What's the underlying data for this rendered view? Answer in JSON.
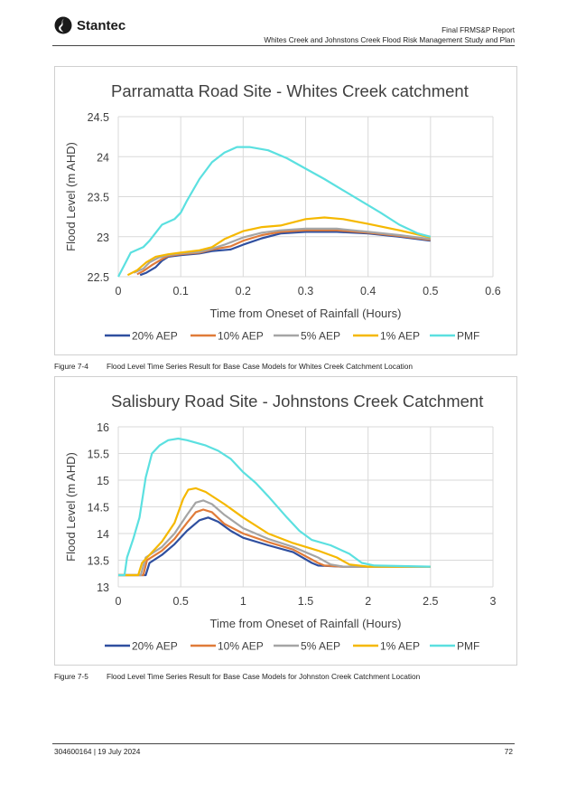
{
  "header": {
    "logo_text": "Stantec",
    "report_title": "Final FRMS&P Report",
    "study_title": "Whites Creek and Johnstons Creek Flood Risk Management Study and Plan"
  },
  "colors": {
    "aep20": "#2F4F9F",
    "aep10": "#E07B39",
    "aep5": "#A5A5A5",
    "aep1": "#F5B800",
    "pmf": "#5BE0E0"
  },
  "figures": [
    {
      "number": "Figure 7-4",
      "caption": "Flood Level Time Series Result for Base Case Models for Whites Creek Catchment Location"
    },
    {
      "number": "Figure 7-5",
      "caption": "Flood Level Time Series Result for Base Case Models for Johnston Creek Catchment Location"
    }
  ],
  "footer": {
    "doc_ref": "304600164 | 19 July 2024",
    "page": "72"
  },
  "chart_data": [
    {
      "type": "line",
      "title": "Parramatta Road Site - Whites Creek catchment",
      "xlabel": "Time from Oneset of Rainfall (Hours)",
      "ylabel": "Flood Level (m AHD)",
      "xlim": [
        0,
        0.6
      ],
      "ylim": [
        22.5,
        24.5
      ],
      "xticks": [
        "0",
        "0.1",
        "0.2",
        "0.3",
        "0.4",
        "0.5",
        "0.6"
      ],
      "yticks": [
        "22.5",
        "23",
        "23.5",
        "24",
        "24.5"
      ],
      "grid": true,
      "legend_position": "bottom",
      "series": [
        {
          "name": "20% AEP",
          "color_key": "aep20",
          "points": [
            [
              0.035,
              22.52
            ],
            [
              0.045,
              22.55
            ],
            [
              0.06,
              22.62
            ],
            [
              0.07,
              22.7
            ],
            [
              0.08,
              22.75
            ],
            [
              0.1,
              22.77
            ],
            [
              0.13,
              22.79
            ],
            [
              0.15,
              22.82
            ],
            [
              0.18,
              22.84
            ],
            [
              0.2,
              22.9
            ],
            [
              0.23,
              22.98
            ],
            [
              0.26,
              23.04
            ],
            [
              0.3,
              23.06
            ],
            [
              0.35,
              23.06
            ],
            [
              0.4,
              23.04
            ],
            [
              0.45,
              23.0
            ],
            [
              0.5,
              22.95
            ]
          ]
        },
        {
          "name": "10% AEP",
          "color_key": "aep10",
          "points": [
            [
              0.03,
              22.53
            ],
            [
              0.04,
              22.57
            ],
            [
              0.055,
              22.65
            ],
            [
              0.07,
              22.72
            ],
            [
              0.08,
              22.76
            ],
            [
              0.1,
              22.78
            ],
            [
              0.13,
              22.8
            ],
            [
              0.15,
              22.84
            ],
            [
              0.18,
              22.88
            ],
            [
              0.2,
              22.95
            ],
            [
              0.23,
              23.02
            ],
            [
              0.26,
              23.06
            ],
            [
              0.3,
              23.08
            ],
            [
              0.35,
              23.08
            ],
            [
              0.4,
              23.05
            ],
            [
              0.45,
              23.01
            ],
            [
              0.5,
              22.96
            ]
          ]
        },
        {
          "name": "5% AEP",
          "color_key": "aep5",
          "points": [
            [
              0.025,
              22.55
            ],
            [
              0.04,
              22.6
            ],
            [
              0.05,
              22.68
            ],
            [
              0.065,
              22.74
            ],
            [
              0.08,
              22.77
            ],
            [
              0.1,
              22.79
            ],
            [
              0.13,
              22.81
            ],
            [
              0.15,
              22.85
            ],
            [
              0.17,
              22.9
            ],
            [
              0.2,
              22.99
            ],
            [
              0.23,
              23.05
            ],
            [
              0.26,
              23.08
            ],
            [
              0.3,
              23.1
            ],
            [
              0.35,
              23.1
            ],
            [
              0.4,
              23.06
            ],
            [
              0.45,
              23.02
            ],
            [
              0.5,
              22.97
            ]
          ]
        },
        {
          "name": "1% AEP",
          "color_key": "aep1",
          "points": [
            [
              0.015,
              22.52
            ],
            [
              0.03,
              22.58
            ],
            [
              0.045,
              22.68
            ],
            [
              0.06,
              22.75
            ],
            [
              0.08,
              22.78
            ],
            [
              0.1,
              22.8
            ],
            [
              0.13,
              22.83
            ],
            [
              0.15,
              22.87
            ],
            [
              0.17,
              22.97
            ],
            [
              0.2,
              23.07
            ],
            [
              0.23,
              23.12
            ],
            [
              0.26,
              23.14
            ],
            [
              0.3,
              23.22
            ],
            [
              0.33,
              23.24
            ],
            [
              0.36,
              23.22
            ],
            [
              0.4,
              23.16
            ],
            [
              0.45,
              23.08
            ],
            [
              0.5,
              22.99
            ]
          ]
        },
        {
          "name": "PMF",
          "color_key": "pmf",
          "points": [
            [
              0.0,
              22.5
            ],
            [
              0.01,
              22.65
            ],
            [
              0.02,
              22.8
            ],
            [
              0.04,
              22.87
            ],
            [
              0.05,
              22.95
            ],
            [
              0.07,
              23.15
            ],
            [
              0.09,
              23.22
            ],
            [
              0.1,
              23.3
            ],
            [
              0.11,
              23.45
            ],
            [
              0.13,
              23.72
            ],
            [
              0.15,
              23.93
            ],
            [
              0.17,
              24.05
            ],
            [
              0.19,
              24.12
            ],
            [
              0.21,
              24.12
            ],
            [
              0.24,
              24.08
            ],
            [
              0.27,
              23.98
            ],
            [
              0.3,
              23.85
            ],
            [
              0.33,
              23.72
            ],
            [
              0.36,
              23.58
            ],
            [
              0.39,
              23.44
            ],
            [
              0.42,
              23.3
            ],
            [
              0.45,
              23.15
            ],
            [
              0.48,
              23.04
            ],
            [
              0.5,
              23.0
            ]
          ]
        }
      ]
    },
    {
      "type": "line",
      "title": "Salisbury Road Site - Johnstons Creek Catchment",
      "xlabel": "Time from Oneset of Rainfall (Hours)",
      "ylabel": "Flood Level (m AHD)",
      "xlim": [
        0,
        3
      ],
      "ylim": [
        13,
        16
      ],
      "xticks": [
        "0",
        "0.5",
        "1",
        "1.5",
        "2",
        "2.5",
        "3"
      ],
      "yticks": [
        "13",
        "13.5",
        "14",
        "14.5",
        "15",
        "15.5",
        "16"
      ],
      "grid": true,
      "legend_position": "bottom",
      "series": [
        {
          "name": "20% AEP",
          "color_key": "aep20",
          "points": [
            [
              0.0,
              13.22
            ],
            [
              0.22,
              13.22
            ],
            [
              0.25,
              13.45
            ],
            [
              0.35,
              13.6
            ],
            [
              0.45,
              13.8
            ],
            [
              0.55,
              14.05
            ],
            [
              0.65,
              14.25
            ],
            [
              0.72,
              14.3
            ],
            [
              0.8,
              14.22
            ],
            [
              0.9,
              14.05
            ],
            [
              1.0,
              13.92
            ],
            [
              1.2,
              13.78
            ],
            [
              1.4,
              13.65
            ],
            [
              1.55,
              13.45
            ],
            [
              1.6,
              13.4
            ],
            [
              1.8,
              13.38
            ],
            [
              2.5,
              13.38
            ]
          ]
        },
        {
          "name": "10% AEP",
          "color_key": "aep10",
          "points": [
            [
              0.0,
              13.22
            ],
            [
              0.2,
              13.22
            ],
            [
              0.23,
              13.5
            ],
            [
              0.35,
              13.68
            ],
            [
              0.45,
              13.9
            ],
            [
              0.55,
              14.2
            ],
            [
              0.62,
              14.4
            ],
            [
              0.68,
              14.45
            ],
            [
              0.75,
              14.4
            ],
            [
              0.85,
              14.18
            ],
            [
              1.0,
              14.0
            ],
            [
              1.2,
              13.84
            ],
            [
              1.4,
              13.7
            ],
            [
              1.6,
              13.45
            ],
            [
              1.65,
              13.4
            ],
            [
              1.8,
              13.38
            ],
            [
              2.5,
              13.38
            ]
          ]
        },
        {
          "name": "5% AEP",
          "color_key": "aep5",
          "points": [
            [
              0.0,
              13.22
            ],
            [
              0.18,
              13.22
            ],
            [
              0.22,
              13.55
            ],
            [
              0.35,
              13.75
            ],
            [
              0.45,
              14.0
            ],
            [
              0.55,
              14.35
            ],
            [
              0.62,
              14.58
            ],
            [
              0.68,
              14.62
            ],
            [
              0.75,
              14.55
            ],
            [
              0.85,
              14.35
            ],
            [
              1.0,
              14.1
            ],
            [
              1.2,
              13.9
            ],
            [
              1.4,
              13.75
            ],
            [
              1.6,
              13.55
            ],
            [
              1.7,
              13.42
            ],
            [
              1.8,
              13.38
            ],
            [
              2.5,
              13.38
            ]
          ]
        },
        {
          "name": "1% AEP",
          "color_key": "aep1",
          "points": [
            [
              0.0,
              13.22
            ],
            [
              0.16,
              13.22
            ],
            [
              0.19,
              13.45
            ],
            [
              0.25,
              13.6
            ],
            [
              0.35,
              13.85
            ],
            [
              0.45,
              14.2
            ],
            [
              0.52,
              14.65
            ],
            [
              0.56,
              14.82
            ],
            [
              0.62,
              14.85
            ],
            [
              0.7,
              14.78
            ],
            [
              0.85,
              14.55
            ],
            [
              1.0,
              14.3
            ],
            [
              1.2,
              14.0
            ],
            [
              1.4,
              13.82
            ],
            [
              1.6,
              13.68
            ],
            [
              1.75,
              13.55
            ],
            [
              1.85,
              13.42
            ],
            [
              2.0,
              13.38
            ],
            [
              2.5,
              13.38
            ]
          ]
        },
        {
          "name": "PMF",
          "color_key": "pmf",
          "points": [
            [
              0.0,
              13.22
            ],
            [
              0.05,
              13.22
            ],
            [
              0.07,
              13.55
            ],
            [
              0.12,
              13.9
            ],
            [
              0.17,
              14.3
            ],
            [
              0.22,
              15.05
            ],
            [
              0.27,
              15.5
            ],
            [
              0.33,
              15.65
            ],
            [
              0.4,
              15.75
            ],
            [
              0.48,
              15.78
            ],
            [
              0.55,
              15.75
            ],
            [
              0.7,
              15.65
            ],
            [
              0.8,
              15.55
            ],
            [
              0.9,
              15.4
            ],
            [
              1.0,
              15.15
            ],
            [
              1.1,
              14.95
            ],
            [
              1.2,
              14.7
            ],
            [
              1.35,
              14.3
            ],
            [
              1.45,
              14.05
            ],
            [
              1.55,
              13.88
            ],
            [
              1.7,
              13.78
            ],
            [
              1.85,
              13.62
            ],
            [
              1.95,
              13.45
            ],
            [
              2.05,
              13.4
            ],
            [
              2.5,
              13.38
            ]
          ]
        }
      ]
    }
  ]
}
